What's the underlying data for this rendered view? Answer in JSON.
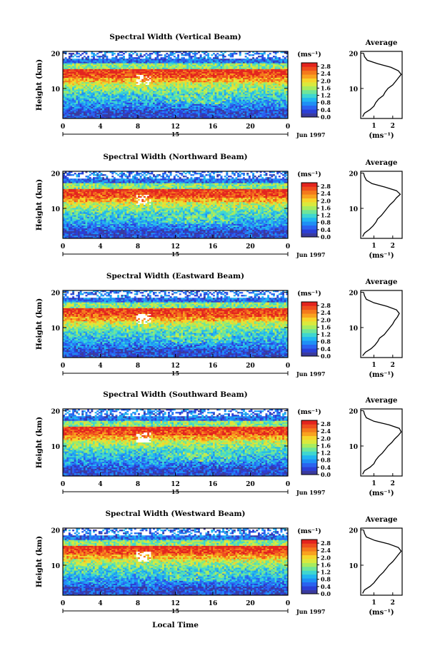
{
  "chart_data": {
    "type": "heatmap",
    "figure_xlabel": "Local Time",
    "date_label": "Jun 1997",
    "day_label": "15",
    "colorbar": {
      "unit": "(ms⁻¹)",
      "ticks": [
        "0.0",
        "0.4",
        "0.8",
        "1.2",
        "1.6",
        "2.0",
        "2.4",
        "2.8"
      ],
      "vmin": 0.0,
      "vmax": 3.0,
      "colors": [
        "#3a3a9e",
        "#2b3fd6",
        "#2a63f0",
        "#1f8ff5",
        "#22b6f0",
        "#3fd6d0",
        "#6ee59a",
        "#a8ec5e",
        "#dbe93c",
        "#f6d52a",
        "#f9a21f",
        "#f47a1c",
        "#ee4e1e",
        "#e3241e"
      ]
    },
    "panels": [
      {
        "title": "Spectral Width (Vertical Beam)",
        "ylabel": "Height (km)",
        "x_ticks": [
          "0",
          "4",
          "8",
          "12",
          "16",
          "20",
          "0"
        ],
        "y_ticks": [
          "10",
          "20"
        ],
        "xlim": [
          0,
          24
        ],
        "ylim": [
          1.5,
          20.5
        ],
        "average": {
          "title": "Average",
          "xlabel": "(ms⁻¹)",
          "x_ticks": [
            "1",
            "2"
          ],
          "y_ticks": [
            "10",
            "20"
          ],
          "xlim": [
            0.3,
            2.5
          ],
          "height_km": [
            2,
            3,
            4,
            5,
            6,
            7,
            8,
            9,
            10,
            11,
            12,
            13,
            14,
            15,
            16,
            17,
            18,
            19,
            20
          ],
          "mean_width": [
            0.4,
            0.5,
            0.8,
            1.0,
            1.1,
            1.25,
            1.5,
            1.6,
            1.75,
            2.0,
            2.15,
            2.3,
            2.45,
            2.3,
            1.9,
            1.2,
            0.65,
            0.5,
            0.45
          ]
        }
      },
      {
        "title": "Spectral Width (Northward Beam)",
        "ylabel": "Height (km)",
        "x_ticks": [
          "0",
          "4",
          "8",
          "12",
          "16",
          "20",
          "0"
        ],
        "y_ticks": [
          "10",
          "20"
        ],
        "xlim": [
          0,
          24
        ],
        "ylim": [
          1.5,
          20.5
        ],
        "average": {
          "title": "Average",
          "xlabel": "(ms⁻¹)",
          "x_ticks": [
            "1",
            "2"
          ],
          "y_ticks": [
            "10",
            "20"
          ],
          "xlim": [
            0.3,
            2.5
          ],
          "height_km": [
            2,
            3,
            4,
            5,
            6,
            7,
            8,
            9,
            10,
            11,
            12,
            13,
            14,
            15,
            16,
            17,
            18,
            19,
            20
          ],
          "mean_width": [
            0.4,
            0.5,
            0.75,
            0.95,
            1.1,
            1.2,
            1.4,
            1.55,
            1.7,
            1.85,
            2.05,
            2.2,
            2.4,
            2.2,
            1.6,
            0.9,
            0.6,
            0.5,
            0.45
          ]
        }
      },
      {
        "title": "Spectral Width (Eastward Beam)",
        "ylabel": "Height (km)",
        "x_ticks": [
          "0",
          "4",
          "8",
          "12",
          "16",
          "20",
          "0"
        ],
        "y_ticks": [
          "10",
          "20"
        ],
        "xlim": [
          0,
          24
        ],
        "ylim": [
          1.5,
          20.5
        ],
        "average": {
          "title": "Average",
          "xlabel": "(ms⁻¹)",
          "x_ticks": [
            "1",
            "2"
          ],
          "y_ticks": [
            "10",
            "20"
          ],
          "xlim": [
            0.3,
            2.5
          ],
          "height_km": [
            2,
            3,
            4,
            5,
            6,
            7,
            8,
            9,
            10,
            11,
            12,
            13,
            14,
            15,
            16,
            17,
            18,
            19,
            20
          ],
          "mean_width": [
            0.4,
            0.55,
            0.85,
            1.05,
            1.2,
            1.3,
            1.55,
            1.7,
            1.85,
            2.0,
            2.1,
            2.25,
            2.35,
            2.2,
            1.7,
            1.0,
            0.6,
            0.5,
            0.45
          ]
        }
      },
      {
        "title": "Spectral Width (Southward Beam)",
        "ylabel": "Height (km)",
        "x_ticks": [
          "0",
          "4",
          "8",
          "12",
          "16",
          "20",
          "0"
        ],
        "y_ticks": [
          "10",
          "20"
        ],
        "xlim": [
          0,
          24
        ],
        "ylim": [
          1.5,
          20.5
        ],
        "average": {
          "title": "Average",
          "xlabel": "(ms⁻¹)",
          "x_ticks": [
            "1",
            "2"
          ],
          "y_ticks": [
            "10",
            "20"
          ],
          "xlim": [
            0.3,
            2.5
          ],
          "height_km": [
            2,
            3,
            4,
            5,
            6,
            7,
            8,
            9,
            10,
            11,
            12,
            13,
            14,
            15,
            16,
            17,
            18,
            19,
            20
          ],
          "mean_width": [
            0.4,
            0.5,
            0.8,
            1.0,
            1.1,
            1.25,
            1.45,
            1.6,
            1.75,
            1.95,
            2.1,
            2.3,
            2.45,
            2.35,
            1.8,
            1.0,
            0.6,
            0.5,
            0.45
          ]
        }
      },
      {
        "title": "Spectral Width (Westward Beam)",
        "ylabel": "Height (km)",
        "x_ticks": [
          "0",
          "4",
          "8",
          "12",
          "16",
          "20",
          "0"
        ],
        "y_ticks": [
          "10",
          "20"
        ],
        "xlim": [
          0,
          24
        ],
        "ylim": [
          1.5,
          20.5
        ],
        "average": {
          "title": "Average",
          "xlabel": "(ms⁻¹)",
          "x_ticks": [
            "1",
            "2"
          ],
          "y_ticks": [
            "10",
            "20"
          ],
          "xlim": [
            0.3,
            2.5
          ],
          "height_km": [
            2,
            3,
            4,
            5,
            6,
            7,
            8,
            9,
            10,
            11,
            12,
            13,
            14,
            15,
            16,
            17,
            18,
            19,
            20
          ],
          "mean_width": [
            0.4,
            0.5,
            0.8,
            1.0,
            1.15,
            1.3,
            1.5,
            1.65,
            1.8,
            2.0,
            2.15,
            2.3,
            2.45,
            2.3,
            1.8,
            1.05,
            0.6,
            0.5,
            0.45
          ]
        }
      }
    ]
  }
}
